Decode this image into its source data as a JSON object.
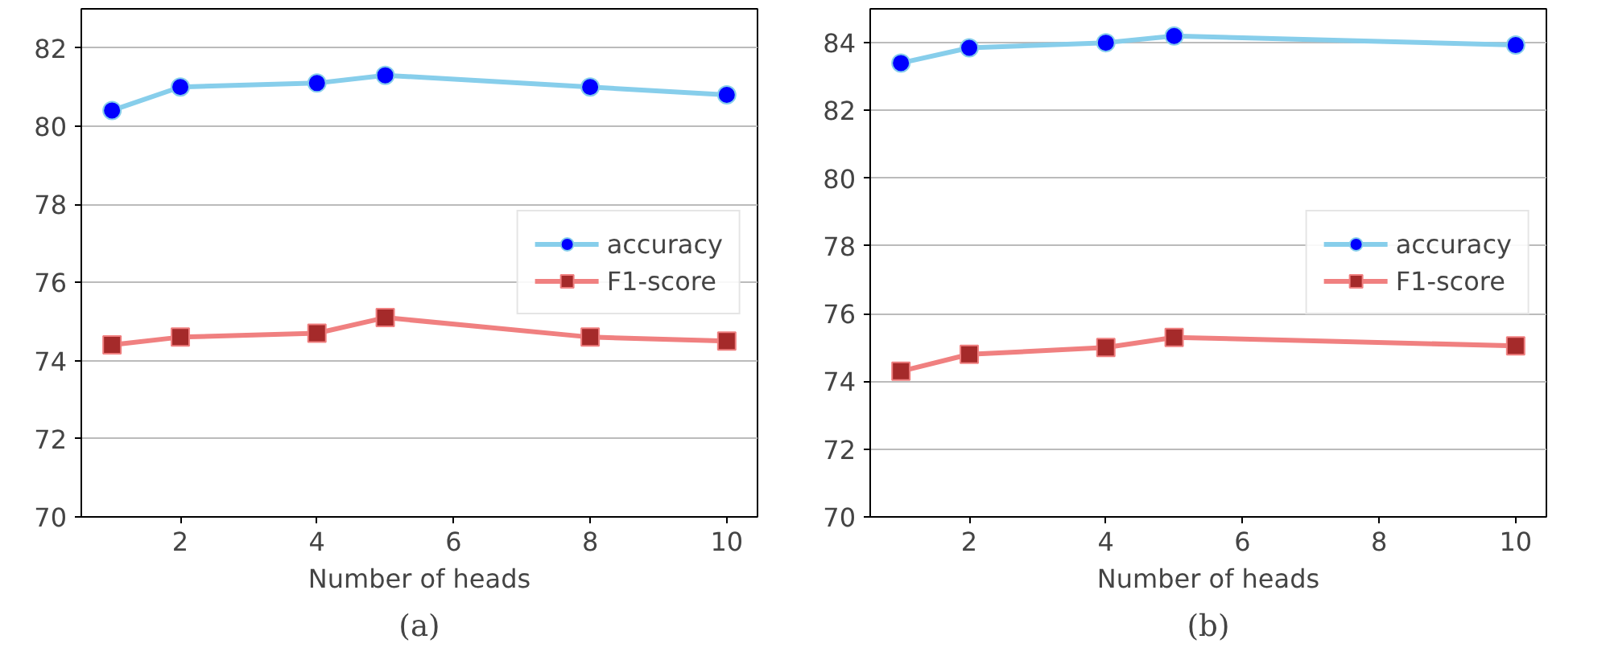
{
  "chart_data": [
    {
      "type": "line",
      "xlabel": "Number of heads",
      "x": [
        1,
        2,
        4,
        5,
        8,
        10
      ],
      "xlim": [
        0.55,
        10.45
      ],
      "xticks": [
        2,
        4,
        6,
        8,
        10
      ],
      "ylim": [
        70,
        83
      ],
      "yticks": [
        70,
        72,
        74,
        76,
        78,
        80,
        82
      ],
      "grid": "y",
      "legend": "right",
      "line_style": "solid",
      "annotations": [
        "(a)"
      ],
      "series": [
        {
          "name": "accuracy",
          "color": "#87ceeb",
          "marker": "circle",
          "colors": [
            "#0000ff",
            "#0000ff",
            "#0000ff",
            "#0000ff",
            "#0000ff",
            "#0000ff"
          ],
          "values": [
            80.4,
            81.0,
            81.1,
            81.3,
            81.0,
            80.8
          ]
        },
        {
          "name": "F1-score",
          "color": "#f08080",
          "marker": "square",
          "colors": [
            "#a52a2a",
            "#a52a2a",
            "#a52a2a",
            "#a52a2a",
            "#a52a2a",
            "#a52a2a"
          ],
          "values": [
            74.4,
            74.6,
            74.7,
            75.1,
            74.6,
            74.5
          ]
        }
      ]
    },
    {
      "type": "line",
      "xlabel": "Number of heads",
      "x": [
        1,
        2,
        4,
        5,
        10
      ],
      "xlim": [
        0.55,
        10.45
      ],
      "xticks": [
        2,
        4,
        6,
        8,
        10
      ],
      "ylim": [
        70,
        85
      ],
      "yticks": [
        70,
        72,
        74,
        76,
        78,
        80,
        82,
        84
      ],
      "grid": "y",
      "legend": "right",
      "line_style": "solid",
      "annotations": [
        "(b)"
      ],
      "series": [
        {
          "name": "accuracy",
          "color": "#87ceeb",
          "marker": "circle",
          "colors": [
            "#0000ff",
            "#0000ff",
            "#0000ff",
            "#0000ff",
            "#0000ff"
          ],
          "values": [
            83.4,
            83.85,
            84.0,
            84.2,
            83.93
          ]
        },
        {
          "name": "F1-score",
          "color": "#f08080",
          "marker": "square",
          "colors": [
            "#a52a2a",
            "#a52a2a",
            "#a52a2a",
            "#a52a2a",
            "#a52a2a"
          ],
          "values": [
            74.3,
            74.8,
            75.0,
            75.3,
            75.05
          ]
        }
      ]
    }
  ]
}
